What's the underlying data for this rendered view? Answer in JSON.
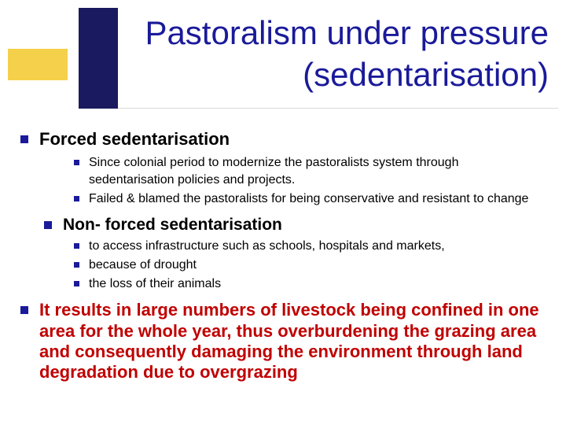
{
  "title": {
    "line1": "Pastoralism under pressure",
    "line2": "(sedentarisation)",
    "title_color": "#1a1a9a",
    "title_fontsize": 42,
    "navy_box_color": "#1a1a60",
    "yellow_bar_color": "#f5d04a",
    "background": "#ffffff"
  },
  "colors": {
    "bullet": "#1a1a9a",
    "body_text": "#000000",
    "emphasis_text": "#c00000"
  },
  "items": [
    {
      "level": 1,
      "text": "Forced sedentarisation",
      "bold": true
    },
    {
      "level": 2,
      "text": "Since colonial period to modernize the pastoralists system through sedentarisation policies and projects."
    },
    {
      "level": 2,
      "text": "Failed & blamed the pastoralists for being conservative and resistant to change"
    },
    {
      "level": 1,
      "indent": true,
      "text": "Non- forced sedentarisation",
      "bold": true
    },
    {
      "level": 2,
      "text": "to access infrastructure such as schools, hospitals and markets,"
    },
    {
      "level": 2,
      "text": "because of drought"
    },
    {
      "level": 2,
      "text": "the loss of their animals"
    },
    {
      "level": 1,
      "text": "It results in large numbers of livestock being confined in one area for the whole year, thus overburdening the grazing area and consequently damaging the environment through land degradation due to overgrazing",
      "bold": true,
      "red": true
    }
  ]
}
